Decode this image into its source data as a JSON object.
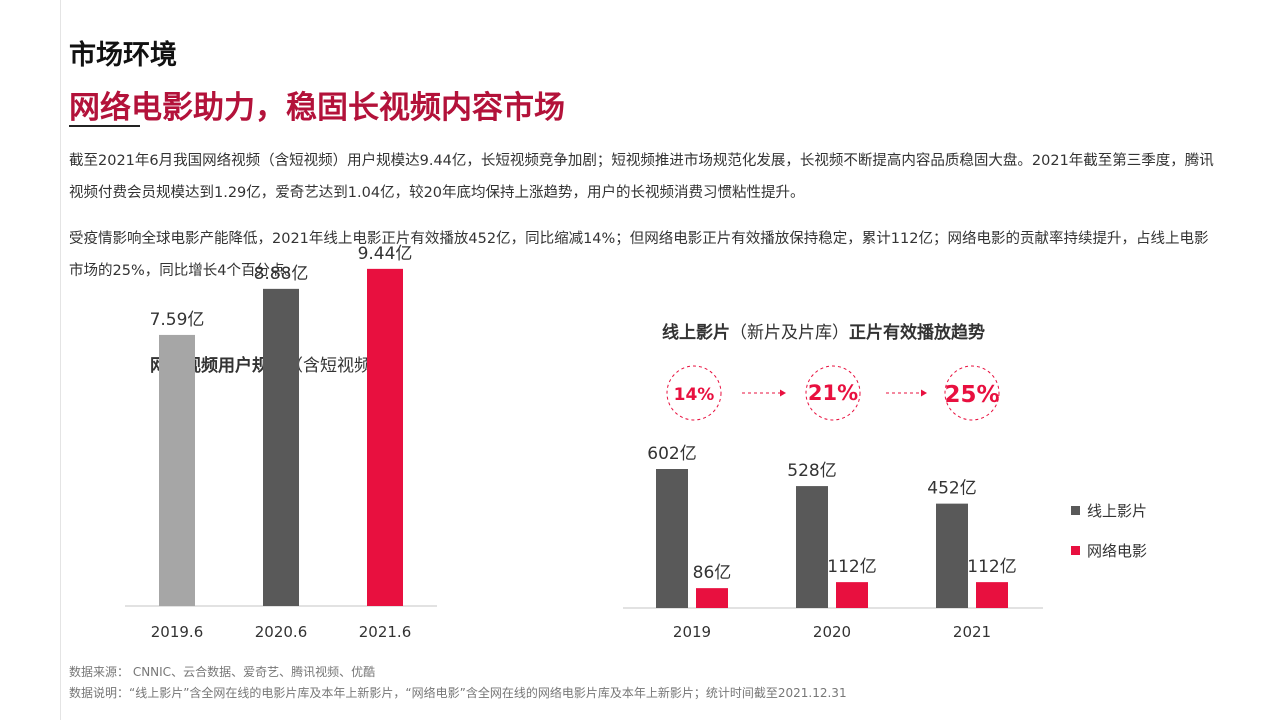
{
  "header": {
    "section_title": "市场环境",
    "headline": "网络电影助力，稳固长视频内容市场"
  },
  "paragraphs": [
    "截至2021年6月我国网络视频（含短视频）用户规模达9.44亿，长短视频竞争加剧；短视频推进市场规范化发展，长视频不断提高内容品质稳固大盘。2021年截至第三季度，腾讯视频付费会员规模达到1.29亿，爱奇艺达到1.04亿，较20年底均保持上涨趋势，用户的长视频消费习惯粘性提升。",
    "受疫情影响全球电影产能降低，2021年线上电影正片有效播放452亿，同比缩减14%；但网络电影正片有效播放保持稳定，累计112亿；网络电影的贡献率持续提升，占线上电影市场的25%，同比增长4个百分点。"
  ],
  "chart1_title_bold": "网络视频用户规模",
  "chart1_title_rest": "（含短视频）",
  "chart2_title_bold_a": "线上影片",
  "chart2_title_rest": "（新片及片库）",
  "chart2_title_bold_b": "正片有效播放趋势",
  "chart_data": [
    {
      "type": "bar",
      "title": "网络视频用户规模（含短视频）",
      "categories": [
        "2019.6",
        "2020.6",
        "2021.6"
      ],
      "values": [
        7.59,
        8.88,
        9.44
      ],
      "data_labels": [
        "7.59亿",
        "8.88亿",
        "9.44亿"
      ],
      "unit": "亿",
      "bar_colors": [
        "#a6a6a6",
        "#595959",
        "#e8103f"
      ],
      "ylim": [
        0,
        11.2
      ],
      "grid": false
    },
    {
      "type": "bar",
      "title": "线上影片（新片及片库）正片有效播放趋势",
      "categories": [
        "2019",
        "2020",
        "2021"
      ],
      "series": [
        {
          "name": "线上影片",
          "values": [
            602,
            528,
            452
          ],
          "data_labels": [
            "602亿",
            "528亿",
            "452亿"
          ],
          "color": "#595959"
        },
        {
          "name": "网络电影",
          "values": [
            86,
            112,
            112
          ],
          "data_labels": [
            "86亿",
            "112亿",
            "112亿"
          ],
          "color": "#e8103f"
        }
      ],
      "share_labels": [
        "14%",
        "21%",
        "25%"
      ],
      "unit": "亿",
      "ylim": [
        0,
        602
      ],
      "legend": "right",
      "grid": false
    }
  ],
  "footnotes": {
    "source": "数据来源： CNNIC、云合数据、爱奇艺、腾讯视频、优酷",
    "note": "数据说明：“线上影片”含全网在线的电影片库及本年上新影片，“网络电影”含全网在线的网络电影片库及本年上新影片；统计时间截至2021.12.31"
  },
  "colors": {
    "accent_dark_red": "#b3123a",
    "accent_red": "#e8103f",
    "dark_gray": "#595959",
    "light_gray": "#a6a6a6"
  }
}
